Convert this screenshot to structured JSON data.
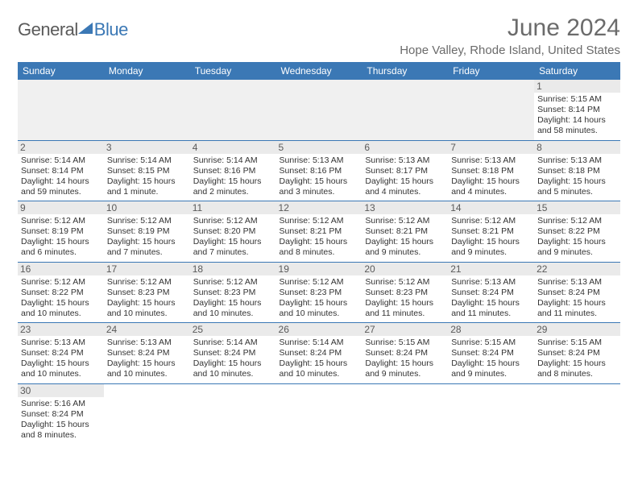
{
  "logo": {
    "word1": "General",
    "word2": "Blue"
  },
  "header": {
    "month_title": "June 2024",
    "location": "Hope Valley, Rhode Island, United States"
  },
  "colors": {
    "header_bg": "#3b78b5",
    "header_text": "#ffffff",
    "daynum_bg": "#eaeaea",
    "row_border": "#3b78b5",
    "text": "#333333",
    "title_gray": "#6b6b6b"
  },
  "weekdays": [
    "Sunday",
    "Monday",
    "Tuesday",
    "Wednesday",
    "Thursday",
    "Friday",
    "Saturday"
  ],
  "weeks": [
    [
      null,
      null,
      null,
      null,
      null,
      null,
      {
        "n": "1",
        "sunrise": "Sunrise: 5:15 AM",
        "sunset": "Sunset: 8:14 PM",
        "daylight": "Daylight: 14 hours and 58 minutes."
      }
    ],
    [
      {
        "n": "2",
        "sunrise": "Sunrise: 5:14 AM",
        "sunset": "Sunset: 8:14 PM",
        "daylight": "Daylight: 14 hours and 59 minutes."
      },
      {
        "n": "3",
        "sunrise": "Sunrise: 5:14 AM",
        "sunset": "Sunset: 8:15 PM",
        "daylight": "Daylight: 15 hours and 1 minute."
      },
      {
        "n": "4",
        "sunrise": "Sunrise: 5:14 AM",
        "sunset": "Sunset: 8:16 PM",
        "daylight": "Daylight: 15 hours and 2 minutes."
      },
      {
        "n": "5",
        "sunrise": "Sunrise: 5:13 AM",
        "sunset": "Sunset: 8:16 PM",
        "daylight": "Daylight: 15 hours and 3 minutes."
      },
      {
        "n": "6",
        "sunrise": "Sunrise: 5:13 AM",
        "sunset": "Sunset: 8:17 PM",
        "daylight": "Daylight: 15 hours and 4 minutes."
      },
      {
        "n": "7",
        "sunrise": "Sunrise: 5:13 AM",
        "sunset": "Sunset: 8:18 PM",
        "daylight": "Daylight: 15 hours and 4 minutes."
      },
      {
        "n": "8",
        "sunrise": "Sunrise: 5:13 AM",
        "sunset": "Sunset: 8:18 PM",
        "daylight": "Daylight: 15 hours and 5 minutes."
      }
    ],
    [
      {
        "n": "9",
        "sunrise": "Sunrise: 5:12 AM",
        "sunset": "Sunset: 8:19 PM",
        "daylight": "Daylight: 15 hours and 6 minutes."
      },
      {
        "n": "10",
        "sunrise": "Sunrise: 5:12 AM",
        "sunset": "Sunset: 8:19 PM",
        "daylight": "Daylight: 15 hours and 7 minutes."
      },
      {
        "n": "11",
        "sunrise": "Sunrise: 5:12 AM",
        "sunset": "Sunset: 8:20 PM",
        "daylight": "Daylight: 15 hours and 7 minutes."
      },
      {
        "n": "12",
        "sunrise": "Sunrise: 5:12 AM",
        "sunset": "Sunset: 8:21 PM",
        "daylight": "Daylight: 15 hours and 8 minutes."
      },
      {
        "n": "13",
        "sunrise": "Sunrise: 5:12 AM",
        "sunset": "Sunset: 8:21 PM",
        "daylight": "Daylight: 15 hours and 9 minutes."
      },
      {
        "n": "14",
        "sunrise": "Sunrise: 5:12 AM",
        "sunset": "Sunset: 8:21 PM",
        "daylight": "Daylight: 15 hours and 9 minutes."
      },
      {
        "n": "15",
        "sunrise": "Sunrise: 5:12 AM",
        "sunset": "Sunset: 8:22 PM",
        "daylight": "Daylight: 15 hours and 9 minutes."
      }
    ],
    [
      {
        "n": "16",
        "sunrise": "Sunrise: 5:12 AM",
        "sunset": "Sunset: 8:22 PM",
        "daylight": "Daylight: 15 hours and 10 minutes."
      },
      {
        "n": "17",
        "sunrise": "Sunrise: 5:12 AM",
        "sunset": "Sunset: 8:23 PM",
        "daylight": "Daylight: 15 hours and 10 minutes."
      },
      {
        "n": "18",
        "sunrise": "Sunrise: 5:12 AM",
        "sunset": "Sunset: 8:23 PM",
        "daylight": "Daylight: 15 hours and 10 minutes."
      },
      {
        "n": "19",
        "sunrise": "Sunrise: 5:12 AM",
        "sunset": "Sunset: 8:23 PM",
        "daylight": "Daylight: 15 hours and 10 minutes."
      },
      {
        "n": "20",
        "sunrise": "Sunrise: 5:12 AM",
        "sunset": "Sunset: 8:23 PM",
        "daylight": "Daylight: 15 hours and 11 minutes."
      },
      {
        "n": "21",
        "sunrise": "Sunrise: 5:13 AM",
        "sunset": "Sunset: 8:24 PM",
        "daylight": "Daylight: 15 hours and 11 minutes."
      },
      {
        "n": "22",
        "sunrise": "Sunrise: 5:13 AM",
        "sunset": "Sunset: 8:24 PM",
        "daylight": "Daylight: 15 hours and 11 minutes."
      }
    ],
    [
      {
        "n": "23",
        "sunrise": "Sunrise: 5:13 AM",
        "sunset": "Sunset: 8:24 PM",
        "daylight": "Daylight: 15 hours and 10 minutes."
      },
      {
        "n": "24",
        "sunrise": "Sunrise: 5:13 AM",
        "sunset": "Sunset: 8:24 PM",
        "daylight": "Daylight: 15 hours and 10 minutes."
      },
      {
        "n": "25",
        "sunrise": "Sunrise: 5:14 AM",
        "sunset": "Sunset: 8:24 PM",
        "daylight": "Daylight: 15 hours and 10 minutes."
      },
      {
        "n": "26",
        "sunrise": "Sunrise: 5:14 AM",
        "sunset": "Sunset: 8:24 PM",
        "daylight": "Daylight: 15 hours and 10 minutes."
      },
      {
        "n": "27",
        "sunrise": "Sunrise: 5:15 AM",
        "sunset": "Sunset: 8:24 PM",
        "daylight": "Daylight: 15 hours and 9 minutes."
      },
      {
        "n": "28",
        "sunrise": "Sunrise: 5:15 AM",
        "sunset": "Sunset: 8:24 PM",
        "daylight": "Daylight: 15 hours and 9 minutes."
      },
      {
        "n": "29",
        "sunrise": "Sunrise: 5:15 AM",
        "sunset": "Sunset: 8:24 PM",
        "daylight": "Daylight: 15 hours and 8 minutes."
      }
    ],
    [
      {
        "n": "30",
        "sunrise": "Sunrise: 5:16 AM",
        "sunset": "Sunset: 8:24 PM",
        "daylight": "Daylight: 15 hours and 8 minutes."
      },
      null,
      null,
      null,
      null,
      null,
      null
    ]
  ]
}
